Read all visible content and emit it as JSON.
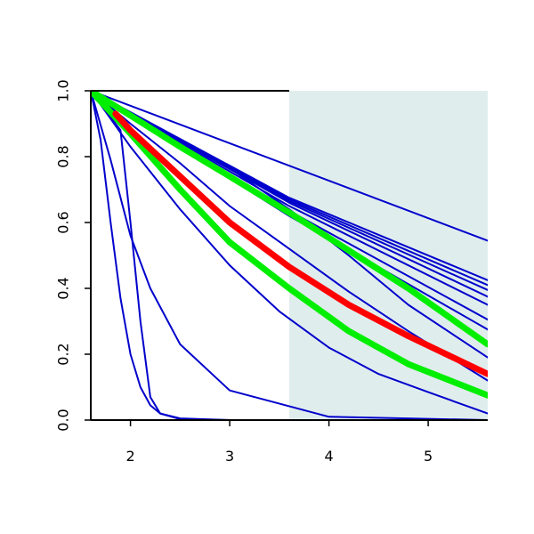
{
  "chart_data": {
    "type": "line",
    "title": "",
    "xlabel": "",
    "ylabel": "",
    "xlim": [
      1.6,
      5.6
    ],
    "ylim": [
      0.0,
      1.0
    ],
    "grid": false,
    "shaded_region": {
      "x_from": 3.6,
      "x_to": 5.6,
      "color": "#e0eded"
    },
    "x_ticks": [
      {
        "value": 2,
        "label": "2"
      },
      {
        "value": 3,
        "label": "3"
      },
      {
        "value": 4,
        "label": "4"
      },
      {
        "value": 5,
        "label": "5"
      }
    ],
    "y_ticks": [
      {
        "value": 0.0,
        "label": "0.0"
      },
      {
        "value": 0.2,
        "label": "0.2"
      },
      {
        "value": 0.4,
        "label": "0.4"
      },
      {
        "value": 0.6,
        "label": "0.6"
      },
      {
        "value": 0.8,
        "label": "0.8"
      },
      {
        "value": 1.0,
        "label": "1.0"
      }
    ],
    "series": [
      {
        "color": "#0000cc",
        "width": 2,
        "x": [
          1.6,
          5.6
        ],
        "y": [
          1.0,
          0.545
        ]
      },
      {
        "color": "#0000cc",
        "width": 2,
        "x": [
          1.6,
          3.6,
          5.6
        ],
        "y": [
          1.0,
          0.675,
          0.425
        ]
      },
      {
        "color": "#0000cc",
        "width": 2,
        "x": [
          1.6,
          3.6,
          5.6
        ],
        "y": [
          1.0,
          0.67,
          0.41
        ]
      },
      {
        "color": "#0000cc",
        "width": 2,
        "x": [
          1.6,
          3.6,
          5.6
        ],
        "y": [
          1.0,
          0.665,
          0.395
        ]
      },
      {
        "color": "#0000cc",
        "width": 2,
        "x": [
          1.6,
          3.6,
          5.6
        ],
        "y": [
          1.0,
          0.66,
          0.375
        ]
      },
      {
        "color": "#0000cc",
        "width": 2,
        "x": [
          1.6,
          3.6,
          5.6
        ],
        "y": [
          1.0,
          0.65,
          0.35
        ]
      },
      {
        "color": "#0000cc",
        "width": 2,
        "x": [
          1.6,
          3.6,
          5.6
        ],
        "y": [
          1.0,
          0.635,
          0.305
        ]
      },
      {
        "color": "#0000cc",
        "width": 2,
        "x": [
          1.6,
          3.6,
          5.6
        ],
        "y": [
          1.0,
          0.62,
          0.275
        ]
      },
      {
        "color": "#0000cc",
        "width": 2,
        "x": [
          1.6,
          1.8,
          2.4,
          3.0,
          3.6,
          4.2,
          4.8,
          5.6
        ],
        "y": [
          1.0,
          0.965,
          0.86,
          0.765,
          0.64,
          0.5,
          0.35,
          0.19
        ]
      },
      {
        "color": "#0000cc",
        "width": 2,
        "x": [
          1.6,
          2.0,
          2.5,
          3.0,
          3.6,
          4.2,
          4.8,
          5.6
        ],
        "y": [
          1.0,
          0.9,
          0.78,
          0.65,
          0.52,
          0.39,
          0.27,
          0.12
        ]
      },
      {
        "color": "#0000cc",
        "width": 2,
        "x": [
          1.6,
          2.0,
          2.5,
          3.0,
          3.5,
          4.0,
          4.5,
          5.0,
          5.6
        ],
        "y": [
          1.0,
          0.83,
          0.64,
          0.47,
          0.33,
          0.22,
          0.14,
          0.085,
          0.02
        ]
      },
      {
        "color": "#0000cc",
        "width": 2,
        "x": [
          1.6,
          1.8,
          2.0,
          2.2,
          2.5,
          3.0,
          4.0,
          5.6
        ],
        "y": [
          1.0,
          0.79,
          0.56,
          0.4,
          0.23,
          0.09,
          0.01,
          0.0
        ]
      },
      {
        "color": "#0000cc",
        "width": 2,
        "x": [
          1.6,
          1.7,
          1.8,
          1.9,
          2.0,
          2.1,
          2.2,
          2.3,
          2.5,
          3.0,
          5.6
        ],
        "y": [
          1.0,
          0.85,
          0.6,
          0.37,
          0.2,
          0.1,
          0.045,
          0.02,
          0.005,
          0.0,
          0.0
        ]
      },
      {
        "color": "#0000cc",
        "width": 2,
        "x": [
          1.6,
          1.9,
          2.0,
          2.1,
          2.2,
          2.3,
          2.5,
          3.0,
          5.6
        ],
        "y": [
          1.0,
          0.88,
          0.6,
          0.3,
          0.07,
          0.02,
          0.003,
          0.0,
          0.0
        ]
      },
      {
        "color": "#00ee00",
        "width": 7,
        "x": [
          1.6,
          2.0,
          2.5,
          3.0,
          3.6,
          4.2,
          4.8,
          5.6
        ],
        "y": [
          1.0,
          0.925,
          0.83,
          0.74,
          0.63,
          0.515,
          0.4,
          0.23
        ]
      },
      {
        "color": "#00ee00",
        "width": 7,
        "x": [
          1.6,
          2.0,
          2.5,
          3.0,
          3.6,
          4.2,
          4.8,
          5.6
        ],
        "y": [
          1.0,
          0.87,
          0.7,
          0.54,
          0.4,
          0.27,
          0.17,
          0.075
        ]
      },
      {
        "color": "#ff0000",
        "width": 7,
        "x": [
          1.85,
          2.0,
          2.5,
          3.0,
          3.6,
          4.2,
          4.8,
          5.6
        ],
        "y": [
          0.93,
          0.88,
          0.74,
          0.6,
          0.465,
          0.35,
          0.255,
          0.14
        ]
      }
    ]
  }
}
